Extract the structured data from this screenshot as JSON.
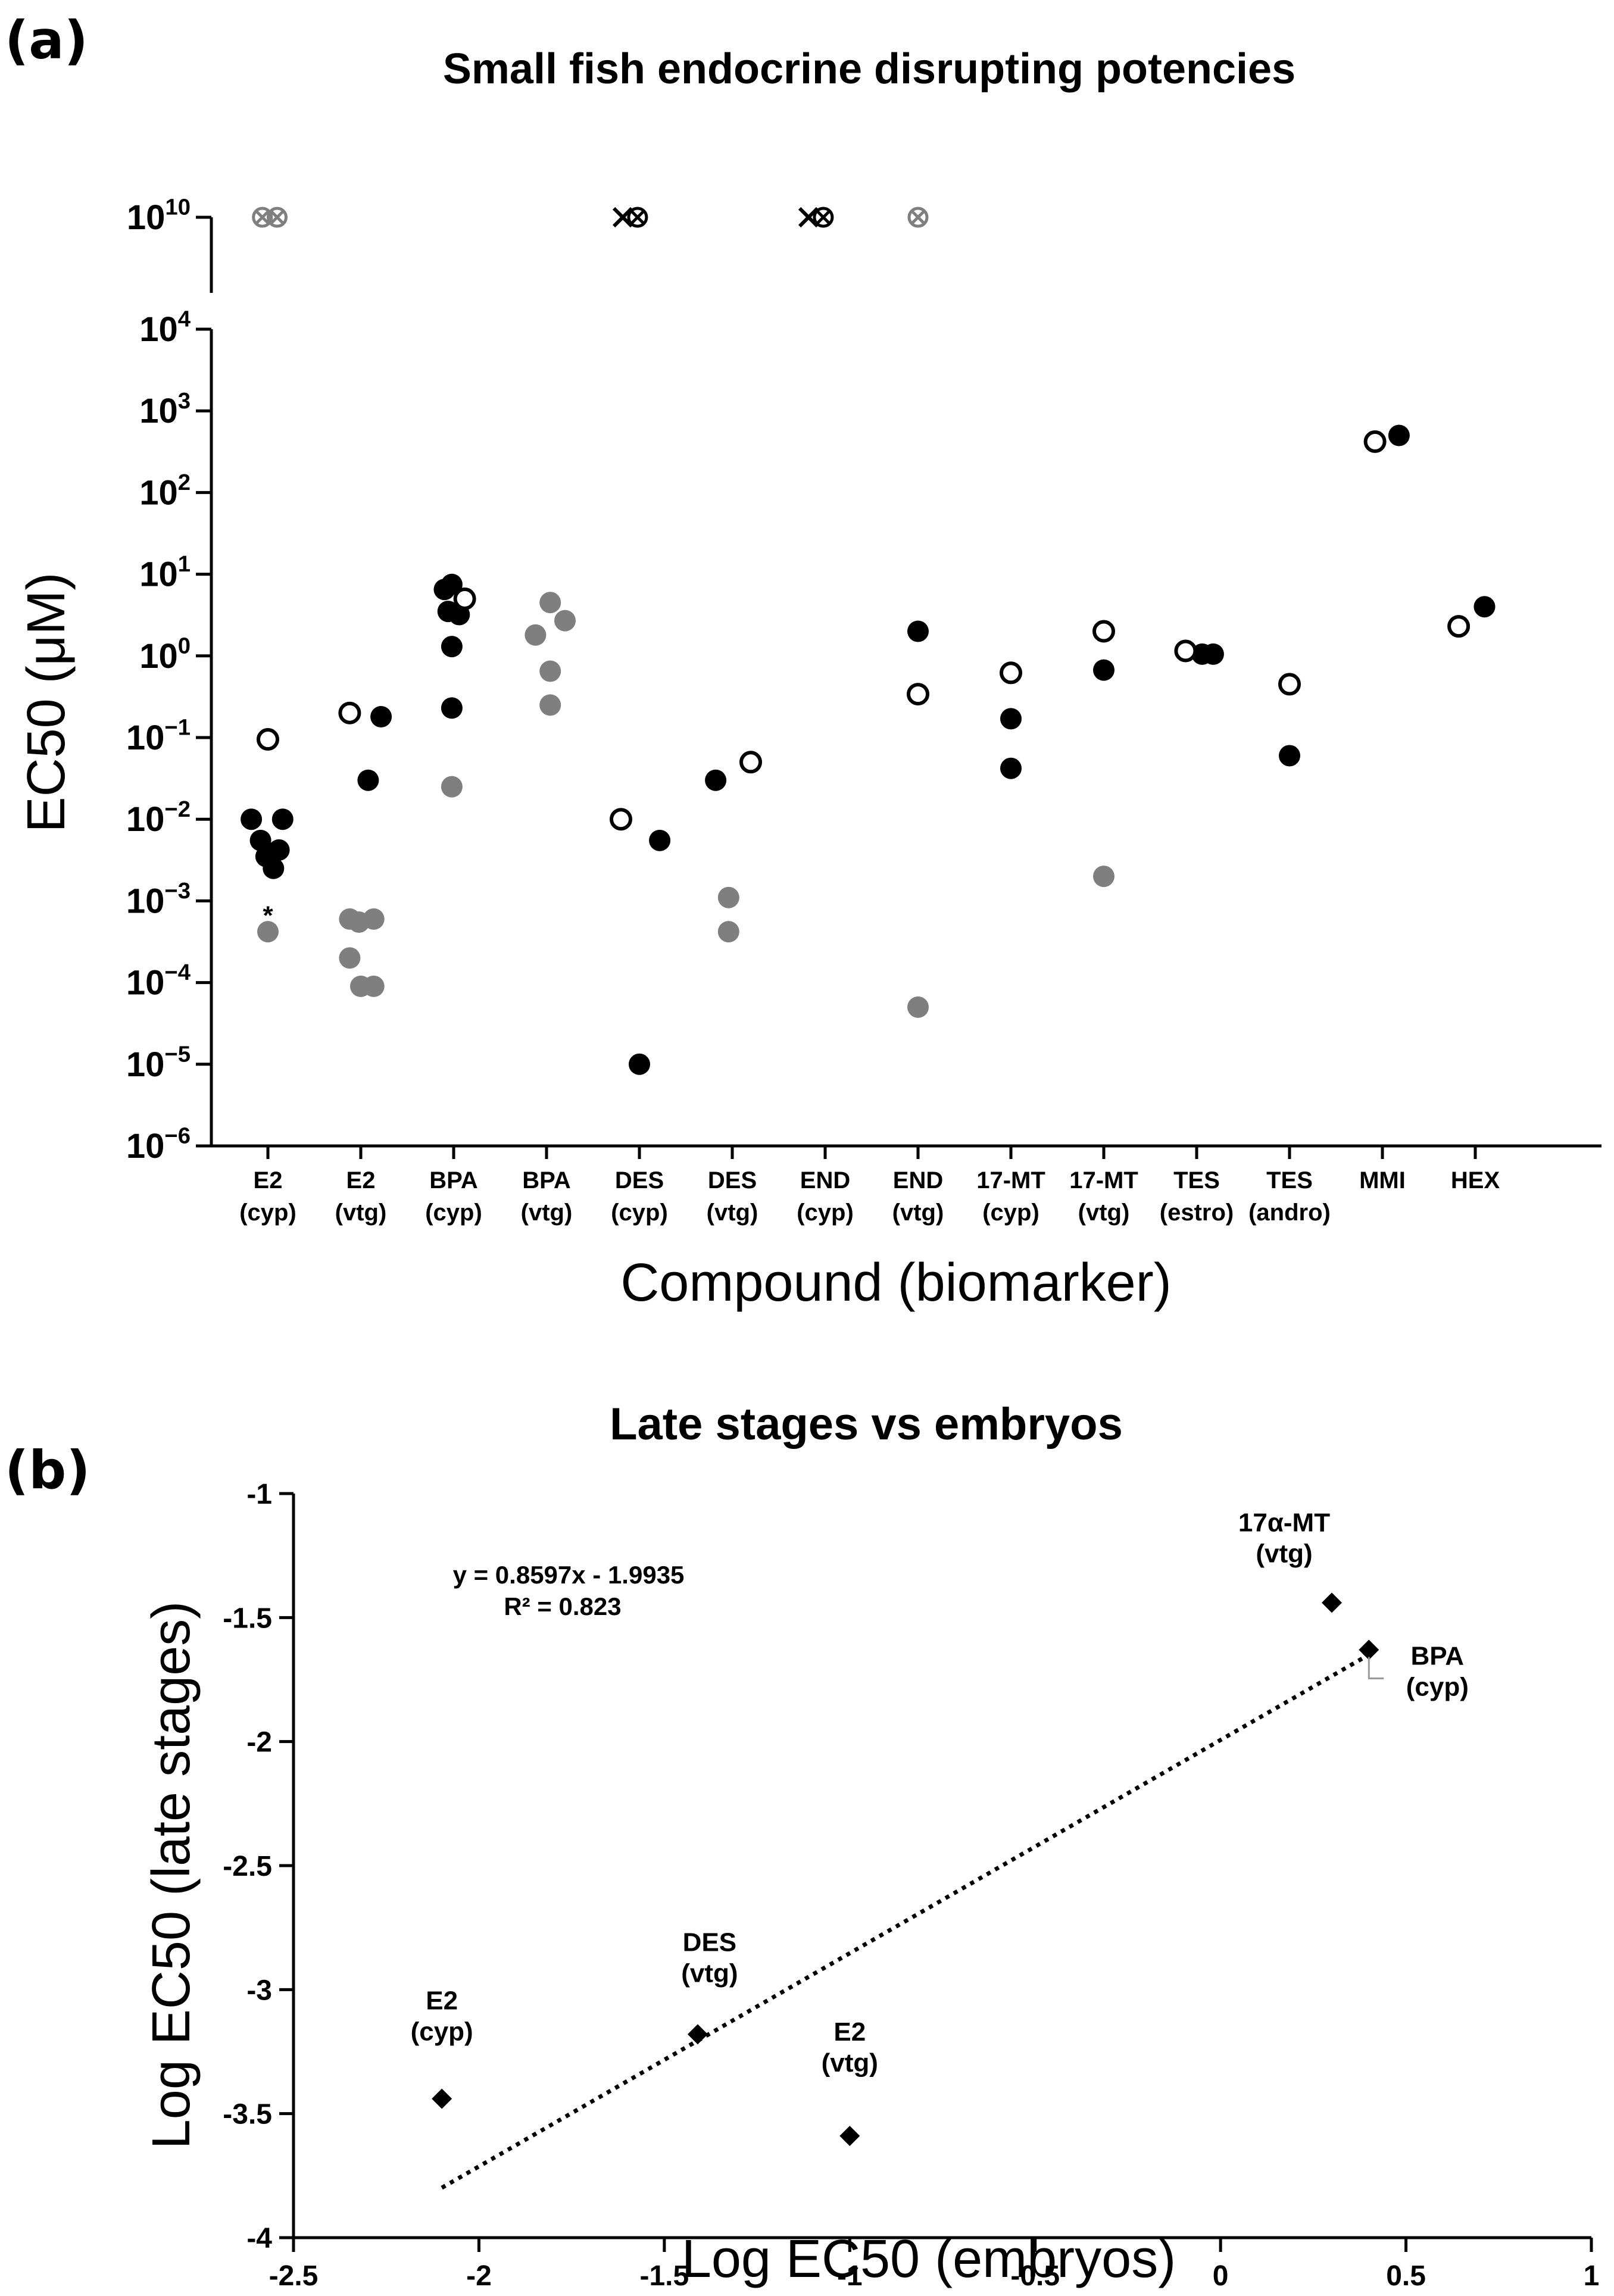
{
  "panel_a_tag": "(a)",
  "panel_b_tag": "(b)",
  "chart_data": [
    {
      "type": "scatter",
      "title": "Small fish endocrine disrupting potencies",
      "xlabel": "Compound (biomarker)",
      "ylabel": "EC50 (μM)",
      "yscale": "log",
      "ylim": [
        1e-06,
        10000.0
      ],
      "broken_axis_top_tick": "10^10",
      "y_ticks": [
        "10^-6",
        "10^-5",
        "10^-4",
        "10^-3",
        "10^-2",
        "10^-1",
        "10^0",
        "10^1",
        "10^2",
        "10^3",
        "10^4",
        "10^10"
      ],
      "categories": [
        {
          "line1": "E2",
          "line2": "(cyp)"
        },
        {
          "line1": "E2",
          "line2": "(vtg)"
        },
        {
          "line1": "BPA",
          "line2": "(cyp)"
        },
        {
          "line1": "BPA",
          "line2": "(vtg)"
        },
        {
          "line1": "DES",
          "line2": "(cyp)"
        },
        {
          "line1": "DES",
          "line2": "(vtg)"
        },
        {
          "line1": "END",
          "line2": "(cyp)"
        },
        {
          "line1": "END",
          "line2": "(vtg)"
        },
        {
          "line1": "17-MT",
          "line2": "(cyp)"
        },
        {
          "line1": "17-MT",
          "line2": "(vtg)"
        },
        {
          "line1": "TES",
          "line2": "(estro)"
        },
        {
          "line1": "TES",
          "line2": "(andro)"
        },
        {
          "line1": "MMI",
          "line2": ""
        },
        {
          "line1": "HEX",
          "line2": ""
        }
      ],
      "series": [
        {
          "name": "filled-black",
          "color": "#000000",
          "points": [
            {
              "cat": 0,
              "dx": -0.45,
              "y": 0.01
            },
            {
              "cat": 0,
              "dx": -0.2,
              "y": 0.0055
            },
            {
              "cat": 0,
              "dx": -0.05,
              "y": 0.0035
            },
            {
              "cat": 0,
              "dx": 0.15,
              "y": 0.0025
            },
            {
              "cat": 0,
              "dx": 0.3,
              "y": 0.0042
            },
            {
              "cat": 0,
              "dx": 0.4,
              "y": 0.01
            },
            {
              "cat": 1,
              "dx": 0.2,
              "y": 0.03
            },
            {
              "cat": 1,
              "dx": 0.55,
              "y": 0.18
            },
            {
              "cat": 2,
              "dx": -0.25,
              "y": 6.5
            },
            {
              "cat": 2,
              "dx": -0.05,
              "y": 7.5
            },
            {
              "cat": 2,
              "dx": -0.15,
              "y": 3.5
            },
            {
              "cat": 2,
              "dx": 0.15,
              "y": 3.2
            },
            {
              "cat": 2,
              "dx": -0.05,
              "y": 1.3
            },
            {
              "cat": 2,
              "dx": -0.05,
              "y": 0.23
            },
            {
              "cat": 4,
              "dx": 0.55,
              "y": 0.0055
            },
            {
              "cat": 4,
              "dx": 0.0,
              "y": 1e-05
            },
            {
              "cat": 5,
              "dx": -0.45,
              "y": 0.03
            },
            {
              "cat": 7,
              "dx": 0.0,
              "y": 2.0
            },
            {
              "cat": 8,
              "dx": 0.0,
              "y": 0.17
            },
            {
              "cat": 8,
              "dx": 0.0,
              "y": 0.042
            },
            {
              "cat": 9,
              "dx": 0.0,
              "y": 0.67
            },
            {
              "cat": 10,
              "dx": 0.15,
              "y": 1.05
            },
            {
              "cat": 10,
              "dx": 0.45,
              "y": 1.05
            },
            {
              "cat": 11,
              "dx": 0.0,
              "y": 0.06
            },
            {
              "cat": 12,
              "dx": 0.45,
              "y": 500
            },
            {
              "cat": 13,
              "dx": 0.25,
              "y": 4.0
            }
          ]
        },
        {
          "name": "filled-gray",
          "color": "#7f7f7f",
          "points": [
            {
              "cat": 0,
              "dx": 0.0,
              "y": 0.00042
            },
            {
              "cat": 1,
              "dx": -0.3,
              "y": 0.0006
            },
            {
              "cat": 1,
              "dx": -0.05,
              "y": 0.00055
            },
            {
              "cat": 1,
              "dx": 0.35,
              "y": 0.0006
            },
            {
              "cat": 1,
              "dx": -0.3,
              "y": 0.0002
            },
            {
              "cat": 1,
              "dx": 0.0,
              "y": 9e-05
            },
            {
              "cat": 1,
              "dx": 0.35,
              "y": 9e-05
            },
            {
              "cat": 2,
              "dx": -0.05,
              "y": 0.025
            },
            {
              "cat": 3,
              "dx": -0.3,
              "y": 1.8
            },
            {
              "cat": 3,
              "dx": 0.1,
              "y": 4.5
            },
            {
              "cat": 3,
              "dx": 0.5,
              "y": 2.7
            },
            {
              "cat": 3,
              "dx": 0.1,
              "y": 0.65
            },
            {
              "cat": 3,
              "dx": 0.1,
              "y": 0.25
            },
            {
              "cat": 5,
              "dx": -0.1,
              "y": 0.0011
            },
            {
              "cat": 5,
              "dx": -0.1,
              "y": 0.00042
            },
            {
              "cat": 7,
              "dx": 0.0,
              "y": 5e-05
            },
            {
              "cat": 9,
              "dx": 0.0,
              "y": 0.002
            }
          ]
        },
        {
          "name": "open",
          "color": "#000000",
          "points": [
            {
              "cat": 0,
              "dx": 0.0,
              "y": 0.095
            },
            {
              "cat": 1,
              "dx": -0.3,
              "y": 0.2
            },
            {
              "cat": 2,
              "dx": 0.3,
              "y": 5.0
            },
            {
              "cat": 4,
              "dx": -0.5,
              "y": 0.01
            },
            {
              "cat": 5,
              "dx": 0.5,
              "y": 0.05
            },
            {
              "cat": 7,
              "dx": 0.0,
              "y": 0.34
            },
            {
              "cat": 8,
              "dx": 0.0,
              "y": 0.62
            },
            {
              "cat": 9,
              "dx": 0.0,
              "y": 2.0
            },
            {
              "cat": 10,
              "dx": -0.3,
              "y": 1.15
            },
            {
              "cat": 11,
              "dx": 0.0,
              "y": 0.45
            },
            {
              "cat": 12,
              "dx": -0.2,
              "y": 420
            },
            {
              "cat": 13,
              "dx": -0.45,
              "y": 2.3
            }
          ]
        },
        {
          "name": "not-reached (10^10)",
          "points": [
            {
              "cat": 0,
              "dx": -0.15,
              "marker": "otimes",
              "color": "#7f7f7f"
            },
            {
              "cat": 0,
              "dx": 0.25,
              "marker": "otimes",
              "color": "#7f7f7f"
            },
            {
              "cat": 4,
              "dx": -0.45,
              "marker": "x",
              "color": "#000000"
            },
            {
              "cat": 4,
              "dx": -0.05,
              "marker": "otimes",
              "color": "#000000"
            },
            {
              "cat": 6,
              "dx": -0.45,
              "marker": "x",
              "color": "#000000"
            },
            {
              "cat": 6,
              "dx": -0.05,
              "marker": "otimes",
              "color": "#000000"
            },
            {
              "cat": 7,
              "dx": 0.0,
              "marker": "otimes",
              "color": "#7f7f7f"
            }
          ]
        }
      ],
      "annotations": [
        {
          "text": "*",
          "cat": 0,
          "y": 0.00075
        }
      ]
    },
    {
      "type": "scatter",
      "title": "Late stages vs embryos",
      "xlabel": "Log EC50 (embryos)",
      "ylabel": "Log EC50 (late stages)",
      "xlim": [
        -2.5,
        1
      ],
      "ylim": [
        -4,
        -1
      ],
      "x_ticks": [
        "-2.5",
        "-2",
        "-1.5",
        "-1",
        "-0.5",
        "0",
        "0.5",
        "1"
      ],
      "y_ticks": [
        "-4",
        "-3.5",
        "-3",
        "-2.5",
        "-2",
        "-1.5",
        "-1"
      ],
      "points": [
        {
          "x": -2.1,
          "y": -3.44,
          "label1": "E2",
          "label2": "(cyp)"
        },
        {
          "x": -1.41,
          "y": -3.18,
          "label1": "DES",
          "label2": "(vtg)"
        },
        {
          "x": -1.0,
          "y": -3.59,
          "label1": "E2",
          "label2": "(vtg)"
        },
        {
          "x": 0.3,
          "y": -1.44,
          "label1": "17α-MT",
          "label2": "(vtg)"
        },
        {
          "x": 0.4,
          "y": -1.63,
          "label1": "BPA",
          "label2": "(cyp)"
        }
      ],
      "trendline": {
        "slope": 0.8597,
        "intercept": -1.9935,
        "x_from": -2.1,
        "x_to": 0.4
      },
      "equation": "y = 0.8597x - 1.9935",
      "r_squared": "R² = 0.823"
    }
  ]
}
